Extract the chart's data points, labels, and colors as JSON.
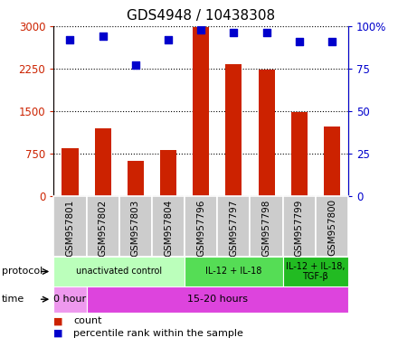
{
  "title": "GDS4948 / 10438308",
  "samples": [
    "GSM957801",
    "GSM957802",
    "GSM957803",
    "GSM957804",
    "GSM957796",
    "GSM957797",
    "GSM957798",
    "GSM957799",
    "GSM957800"
  ],
  "counts": [
    850,
    1200,
    620,
    820,
    2980,
    2320,
    2230,
    1480,
    1220
  ],
  "percentile_ranks": [
    92,
    94,
    77,
    92,
    98,
    96,
    96,
    91,
    91
  ],
  "left_ylim": [
    0,
    3000
  ],
  "right_ylim": [
    0,
    100
  ],
  "left_yticks": [
    0,
    750,
    1500,
    2250,
    3000
  ],
  "left_yticklabels": [
    "0",
    "750",
    "1500",
    "2250",
    "3000"
  ],
  "right_yticks": [
    0,
    25,
    50,
    75,
    100
  ],
  "right_yticklabels": [
    "0",
    "25",
    "50",
    "75",
    "100%"
  ],
  "bar_color": "#cc2200",
  "scatter_color": "#0000cc",
  "protocol_groups": [
    {
      "label": "unactivated control",
      "start": 0,
      "end": 4,
      "color": "#bbffbb"
    },
    {
      "label": "IL-12 + IL-18",
      "start": 4,
      "end": 7,
      "color": "#55dd55"
    },
    {
      "label": "IL-12 + IL-18,\nTGF-β",
      "start": 7,
      "end": 9,
      "color": "#22bb22"
    }
  ],
  "time_groups": [
    {
      "label": "0 hour",
      "start": 0,
      "end": 1,
      "color": "#ee99ee"
    },
    {
      "label": "15-20 hours",
      "start": 1,
      "end": 9,
      "color": "#dd44dd"
    }
  ],
  "protocol_label": "protocol",
  "time_label": "time",
  "legend_count_label": "count",
  "legend_percentile_label": "percentile rank within the sample",
  "sample_bg_color": "#cccccc",
  "sample_edge_color": "#ffffff",
  "tick_label_fontsize": 8.5,
  "title_fontsize": 11,
  "bar_width": 0.5
}
